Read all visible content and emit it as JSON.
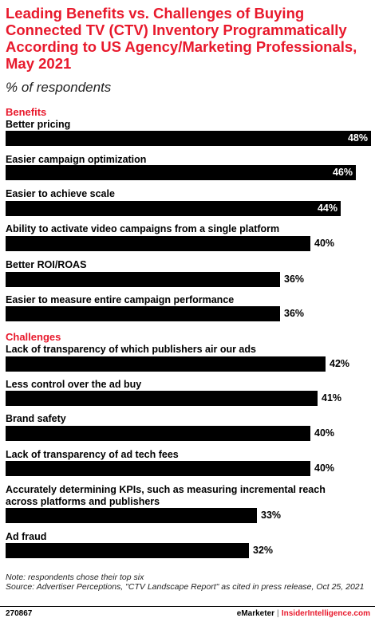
{
  "chart_data": {
    "type": "bar",
    "orientation": "horizontal",
    "title": "Leading Benefits vs. Challenges of Buying Connected TV (CTV) Inventory Programmatically According to US Agency/Marketing Professionals, May 2021",
    "subtitle": "% of respondents",
    "value_suffix": "%",
    "xlim": [
      0,
      48
    ],
    "grid": false,
    "legend": "none",
    "groups": [
      {
        "name": "Benefits",
        "categories": [
          "Better pricing",
          "Easier campaign optimization",
          "Easier to achieve scale",
          "Ability to activate video campaigns from a single platform",
          "Better ROI/ROAS",
          "Easier to measure entire campaign performance"
        ],
        "values": [
          48,
          46,
          44,
          40,
          36,
          36
        ]
      },
      {
        "name": "Challenges",
        "categories": [
          "Lack of transparency of which publishers air our ads",
          "Less control over the ad buy",
          "Brand safety",
          "Lack of transparency of ad tech fees",
          "Accurately determining KPIs, such as measuring incremental reach across platforms and publishers",
          "Ad fraud"
        ],
        "values": [
          42,
          41,
          40,
          40,
          33,
          32
        ]
      }
    ]
  },
  "note": "Note: respondents chose their top six",
  "source": "Source: Advertiser Perceptions, \"CTV Landscape Report\" as cited in press release, Oct 25, 2021",
  "footer": {
    "chart_id": "270867",
    "brand_left": "eMarketer",
    "separator": "|",
    "brand_right": "InsiderIntelligence.com"
  },
  "colors": {
    "accent": "#e8192c",
    "bar": "#000000"
  }
}
